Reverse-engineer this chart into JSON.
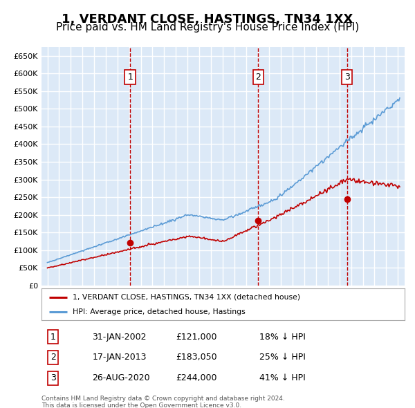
{
  "title": "1, VERDANT CLOSE, HASTINGS, TN34 1XX",
  "subtitle": "Price paid vs. HM Land Registry's House Price Index (HPI)",
  "title_fontsize": 13,
  "subtitle_fontsize": 11,
  "background_color": "#dce9f7",
  "plot_bg_color": "#dce9f7",
  "grid_color": "#ffffff",
  "ylim": [
    0,
    675000
  ],
  "yticks": [
    0,
    50000,
    100000,
    150000,
    200000,
    250000,
    300000,
    350000,
    400000,
    450000,
    500000,
    550000,
    600000,
    650000
  ],
  "ytick_labels": [
    "£0",
    "£50K",
    "£100K",
    "£150K",
    "£200K",
    "£250K",
    "£300K",
    "£350K",
    "£400K",
    "£450K",
    "£500K",
    "£550K",
    "£600K",
    "£650K"
  ],
  "sale_prices": [
    121000,
    183050,
    244000
  ],
  "sale_labels": [
    "1",
    "2",
    "3"
  ],
  "sale_label_dates_str": [
    "31-JAN-2002",
    "17-JAN-2013",
    "26-AUG-2020"
  ],
  "sale_price_str": [
    "£121,000",
    "£183,050",
    "£244,000"
  ],
  "sale_pct_below": [
    "18% ↓ HPI",
    "25% ↓ HPI",
    "41% ↓ HPI"
  ],
  "legend_line1": "1, VERDANT CLOSE, HASTINGS, TN34 1XX (detached house)",
  "legend_line2": "HPI: Average price, detached house, Hastings",
  "footer_line1": "Contains HM Land Registry data © Crown copyright and database right 2024.",
  "footer_line2": "This data is licensed under the Open Government Licence v3.0.",
  "hpi_color": "#5b9bd5",
  "sale_color": "#c00000",
  "vline_color": "#c00000",
  "box_color": "#c00000"
}
